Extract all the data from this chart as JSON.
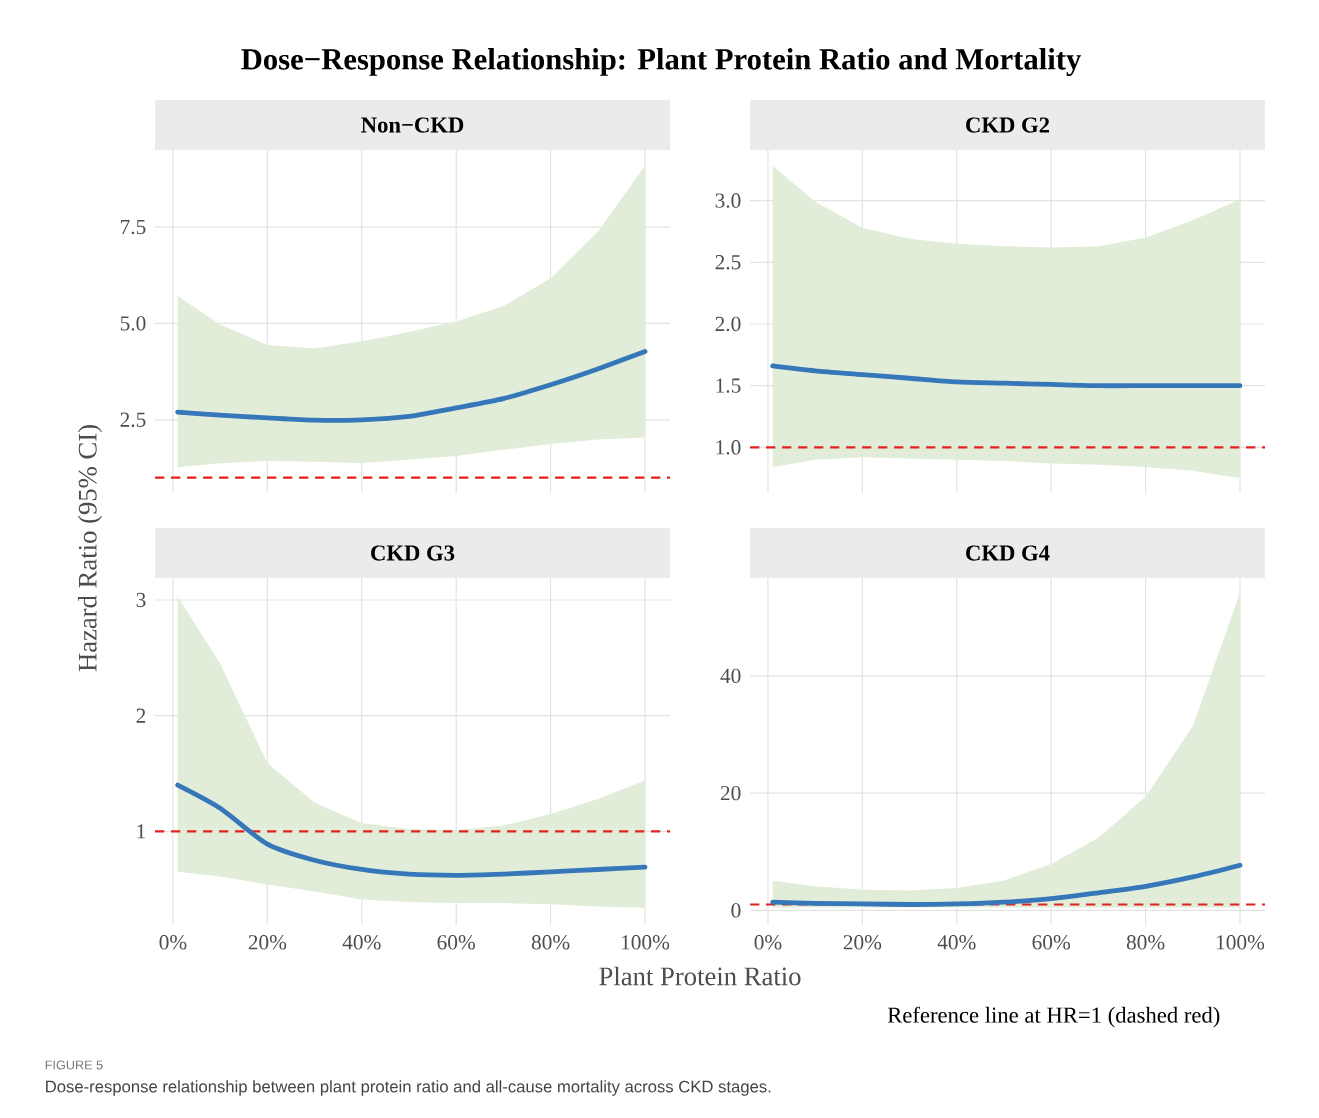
{
  "chart_data": [
    {
      "type": "line",
      "title": "Dose−Response Relationship: Plant Protein Ratio and Mortality",
      "subtitle": "Non−CKD",
      "ylabel": "Hazard Ratio (95% CI)",
      "xlabel": "Plant Protein Ratio",
      "annotations": [
        "Reference line at HR=1 (dashed red)",
        "FIGURE 5",
        "Dose-response relationship between plant protein ratio and all-cause mortality across CKD stages."
      ],
      "grid": true,
      "marker": "none",
      "line_style": "solid",
      "tick_labels": "y",
      "x": [
        1,
        10,
        20,
        30,
        40,
        50,
        60,
        70,
        80,
        90,
        100
      ],
      "xlim": [
        -3.8,
        105.3
      ],
      "xticks": [
        {
          "value": 0,
          "label": null
        },
        {
          "value": 20,
          "label": null
        },
        {
          "value": 40,
          "label": null
        },
        {
          "value": 60,
          "label": null
        },
        {
          "value": 80,
          "label": null
        },
        {
          "value": 100,
          "label": null
        }
      ],
      "ylim": [
        0.6,
        9.5
      ],
      "yticks": [
        2.5,
        {
          "value": 5,
          "label": "5.0"
        },
        7.5
      ],
      "ref_lines": [
        {
          "axis": "y",
          "value": 1,
          "color": "#e3231e",
          "line_style": "dashed"
        }
      ],
      "series": [
        {
          "color": "#3577b9",
          "values": [
            2.7,
            2.62,
            2.55,
            2.49,
            2.5,
            2.59,
            2.81,
            3.05,
            3.41,
            3.82,
            4.27
          ],
          "lower": [
            1.27,
            1.37,
            1.43,
            1.41,
            1.38,
            1.46,
            1.56,
            1.72,
            1.87,
            1.99,
            2.04
          ],
          "upper": [
            5.71,
            4.97,
            4.44,
            4.35,
            4.54,
            4.78,
            5.05,
            5.45,
            6.17,
            7.38,
            9.09
          ]
        }
      ]
    },
    {
      "type": "line",
      "subtitle": "CKD G2",
      "grid": true,
      "marker": "none",
      "line_style": "solid",
      "tick_labels": "y",
      "x": [
        1,
        10,
        20,
        30,
        40,
        50,
        60,
        70,
        80,
        90,
        100
      ],
      "xlim": [
        -3.8,
        105.3
      ],
      "xticks": [
        {
          "value": 0,
          "label": null
        },
        {
          "value": 20,
          "label": null
        },
        {
          "value": 40,
          "label": null
        },
        {
          "value": 60,
          "label": null
        },
        {
          "value": 80,
          "label": null
        },
        {
          "value": 100,
          "label": null
        }
      ],
      "ylim": [
        0.63,
        3.41
      ],
      "yticks": [
        {
          "value": 1,
          "label": "1.0"
        },
        1.5,
        {
          "value": 2,
          "label": "2.0"
        },
        2.5,
        {
          "value": 3,
          "label": "3.0"
        }
      ],
      "ref_lines": [
        {
          "axis": "y",
          "value": 1,
          "color": "#e3231e",
          "line_style": "dashed"
        }
      ],
      "series": [
        {
          "color": "#3577b9",
          "values": [
            1.66,
            1.62,
            1.59,
            1.56,
            1.53,
            1.52,
            1.51,
            1.5,
            1.5,
            1.5,
            1.5
          ],
          "lower": [
            0.84,
            0.9,
            0.92,
            0.91,
            0.9,
            0.89,
            0.87,
            0.86,
            0.84,
            0.81,
            0.75
          ],
          "upper": [
            3.28,
            2.99,
            2.78,
            2.69,
            2.65,
            2.63,
            2.62,
            2.63,
            2.7,
            2.84,
            3.01
          ]
        }
      ]
    },
    {
      "type": "line",
      "subtitle": "CKD G3",
      "grid": true,
      "marker": "none",
      "line_style": "solid",
      "x": [
        1,
        10,
        20,
        30,
        40,
        50,
        60,
        70,
        80,
        90,
        100
      ],
      "xlim": [
        -3.8,
        105.3
      ],
      "xticks": [
        {
          "value": 0,
          "label": "0%"
        },
        {
          "value": 20,
          "label": "20%"
        },
        {
          "value": 40,
          "label": "40%"
        },
        {
          "value": 60,
          "label": "60%"
        },
        {
          "value": 80,
          "label": "80%"
        },
        {
          "value": 100,
          "label": "100%"
        }
      ],
      "ylim": [
        0.19,
        3.19
      ],
      "yticks": [
        1,
        2,
        3
      ],
      "ref_lines": [
        {
          "axis": "y",
          "value": 1,
          "color": "#e3231e",
          "line_style": "dashed"
        }
      ],
      "series": [
        {
          "color": "#3577b9",
          "values": [
            1.4,
            1.2,
            0.89,
            0.75,
            0.67,
            0.63,
            0.62,
            0.63,
            0.65,
            0.67,
            0.69
          ],
          "lower": [
            0.65,
            0.61,
            0.54,
            0.48,
            0.41,
            0.39,
            0.38,
            0.38,
            0.37,
            0.35,
            0.34
          ],
          "upper": [
            3.03,
            2.45,
            1.59,
            1.25,
            1.07,
            1.02,
            1.01,
            1.05,
            1.15,
            1.28,
            1.44
          ]
        }
      ]
    },
    {
      "type": "line",
      "subtitle": "CKD G4",
      "grid": true,
      "marker": "none",
      "line_style": "solid",
      "x": [
        1,
        10,
        20,
        30,
        40,
        50,
        60,
        70,
        80,
        90,
        100
      ],
      "xlim": [
        -3.8,
        105.3
      ],
      "xticks": [
        {
          "value": 0,
          "label": "0%"
        },
        {
          "value": 20,
          "label": "20%"
        },
        {
          "value": 40,
          "label": "40%"
        },
        {
          "value": 60,
          "label": "60%"
        },
        {
          "value": 80,
          "label": "80%"
        },
        {
          "value": 100,
          "label": "100%"
        }
      ],
      "ylim": [
        -2.5,
        56.7
      ],
      "yticks": [
        0,
        20,
        40
      ],
      "ref_lines": [
        {
          "axis": "y",
          "value": 1,
          "color": "#e3231e",
          "line_style": "dashed"
        }
      ],
      "series": [
        {
          "color": "#3577b9",
          "values": [
            1.4,
            1.2,
            1.1,
            1.0,
            1.1,
            1.4,
            2.0,
            3.0,
            4.1,
            5.7,
            7.7
          ],
          "lower": [
            0.5,
            0.5,
            0.5,
            0.5,
            0.5,
            0.5,
            0.5,
            0.5,
            0.5,
            0.5,
            0.5
          ],
          "upper": [
            5.1,
            4.1,
            3.5,
            3.4,
            3.8,
            5.1,
            7.9,
            12.4,
            19.4,
            31.4,
            54.2
          ]
        }
      ]
    }
  ]
}
